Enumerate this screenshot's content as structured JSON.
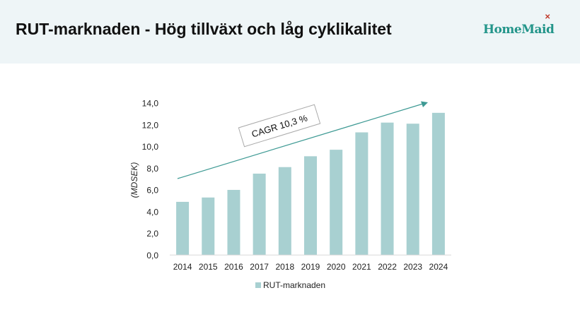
{
  "header": {
    "title": "RUT-marknaden - Hög tillväxt och låg cyklikalitet",
    "logo_text": "HomeMaid"
  },
  "chart_data": {
    "type": "bar",
    "title": "",
    "categories": [
      "2014",
      "2015",
      "2016",
      "2017",
      "2018",
      "2019",
      "2020",
      "2021",
      "2022",
      "2023",
      "2024"
    ],
    "series": [
      {
        "name": "RUT-marknaden",
        "values": [
          4.9,
          5.3,
          6.0,
          7.5,
          8.1,
          9.1,
          9.7,
          11.3,
          12.2,
          12.1,
          13.1
        ]
      }
    ],
    "xlabel": "",
    "ylabel": "(MDSEK)",
    "ylim": [
      0,
      14
    ],
    "yticks": [
      "0,0",
      "2,0",
      "4,0",
      "6,0",
      "8,0",
      "10,0",
      "12,0",
      "14,0"
    ],
    "grid": false,
    "legend": "bottom",
    "annotation": "CAGR 10,3 %",
    "colors": {
      "bar": "#a8d0d1",
      "arrow": "#3e9a94"
    }
  }
}
